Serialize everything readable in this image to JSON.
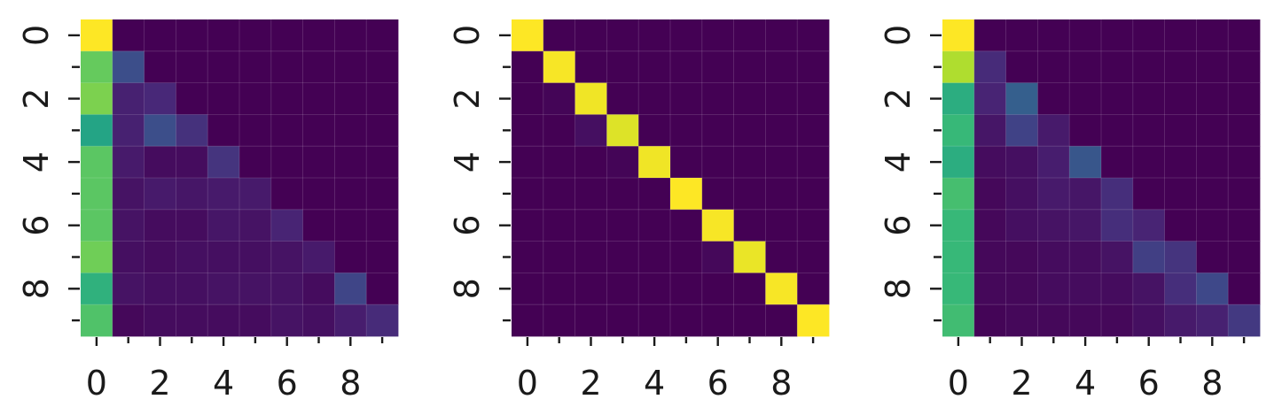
{
  "colormap": {
    "name": "viridis",
    "stops": [
      "#440154",
      "#482878",
      "#3e4989",
      "#31688e",
      "#26828e",
      "#1f9e89",
      "#35b779",
      "#6ece58",
      "#b5de2b",
      "#fde725"
    ]
  },
  "chart_data": [
    {
      "type": "heatmap",
      "title": "",
      "xlabel": "",
      "ylabel": "",
      "x_ticks": [
        0,
        2,
        4,
        6,
        8
      ],
      "y_ticks": [
        0,
        2,
        4,
        6,
        8
      ],
      "grid": false,
      "value_range": [
        0,
        1
      ],
      "values": [
        [
          1.0,
          0.0,
          0.0,
          0.0,
          0.0,
          0.0,
          0.0,
          0.0,
          0.0,
          0.0
        ],
        [
          0.76,
          0.24,
          0.0,
          0.0,
          0.0,
          0.0,
          0.0,
          0.0,
          0.0,
          0.0
        ],
        [
          0.8,
          0.09,
          0.11,
          0.0,
          0.0,
          0.0,
          0.0,
          0.0,
          0.0,
          0.0
        ],
        [
          0.58,
          0.09,
          0.24,
          0.14,
          0.0,
          0.0,
          0.0,
          0.0,
          0.0,
          0.0
        ],
        [
          0.74,
          0.07,
          0.03,
          0.03,
          0.15,
          0.0,
          0.0,
          0.0,
          0.0,
          0.0
        ],
        [
          0.74,
          0.05,
          0.07,
          0.06,
          0.07,
          0.07,
          0.0,
          0.0,
          0.0,
          0.0
        ],
        [
          0.74,
          0.05,
          0.03,
          0.03,
          0.06,
          0.05,
          0.1,
          0.0,
          0.0,
          0.0
        ],
        [
          0.78,
          0.04,
          0.03,
          0.04,
          0.04,
          0.04,
          0.05,
          0.07,
          0.0,
          0.0
        ],
        [
          0.64,
          0.05,
          0.04,
          0.04,
          0.05,
          0.05,
          0.05,
          0.03,
          0.21,
          0.0
        ],
        [
          0.72,
          0.02,
          0.03,
          0.03,
          0.03,
          0.03,
          0.05,
          0.04,
          0.08,
          0.12
        ]
      ]
    },
    {
      "type": "heatmap",
      "title": "",
      "xlabel": "",
      "ylabel": "",
      "x_ticks": [
        0,
        2,
        4,
        6,
        8
      ],
      "y_ticks": [
        0,
        2,
        4,
        6,
        8
      ],
      "grid": false,
      "value_range": [
        0,
        1
      ],
      "values": [
        [
          1.0,
          0.0,
          0.0,
          0.0,
          0.0,
          0.0,
          0.0,
          0.0,
          0.0,
          0.0
        ],
        [
          0.0,
          0.99,
          0.0,
          0.0,
          0.0,
          0.0,
          0.0,
          0.0,
          0.0,
          0.0
        ],
        [
          0.0,
          0.01,
          0.98,
          0.0,
          0.0,
          0.0,
          0.0,
          0.0,
          0.0,
          0.0
        ],
        [
          0.0,
          0.0,
          0.04,
          0.95,
          0.0,
          0.0,
          0.0,
          0.0,
          0.0,
          0.0
        ],
        [
          0.0,
          0.0,
          0.0,
          0.01,
          0.98,
          0.0,
          0.0,
          0.0,
          0.0,
          0.0
        ],
        [
          0.0,
          0.0,
          0.0,
          0.0,
          0.0,
          1.0,
          0.0,
          0.0,
          0.0,
          0.0
        ],
        [
          0.0,
          0.0,
          0.0,
          0.0,
          0.0,
          0.0,
          0.99,
          0.0,
          0.0,
          0.0
        ],
        [
          0.0,
          0.0,
          0.0,
          0.0,
          0.0,
          0.0,
          0.02,
          0.97,
          0.0,
          0.0
        ],
        [
          0.0,
          0.0,
          0.0,
          0.0,
          0.0,
          0.0,
          0.0,
          0.0,
          0.99,
          0.0
        ],
        [
          0.0,
          0.0,
          0.0,
          0.0,
          0.0,
          0.0,
          0.0,
          0.0,
          0.0,
          1.0
        ]
      ]
    },
    {
      "type": "heatmap",
      "title": "",
      "xlabel": "",
      "ylabel": "",
      "x_ticks": [
        0,
        2,
        4,
        6,
        8
      ],
      "y_ticks": [
        0,
        2,
        4,
        6,
        8
      ],
      "grid": false,
      "value_range": [
        0,
        1
      ],
      "values": [
        [
          1.0,
          0.0,
          0.0,
          0.0,
          0.0,
          0.0,
          0.0,
          0.0,
          0.0,
          0.0
        ],
        [
          0.88,
          0.12,
          0.0,
          0.0,
          0.0,
          0.0,
          0.0,
          0.0,
          0.0,
          0.0
        ],
        [
          0.62,
          0.1,
          0.3,
          0.0,
          0.0,
          0.0,
          0.0,
          0.0,
          0.0,
          0.0
        ],
        [
          0.67,
          0.06,
          0.2,
          0.07,
          0.0,
          0.0,
          0.0,
          0.0,
          0.0,
          0.0
        ],
        [
          0.62,
          0.03,
          0.04,
          0.08,
          0.27,
          0.0,
          0.0,
          0.0,
          0.0,
          0.0
        ],
        [
          0.7,
          0.02,
          0.04,
          0.07,
          0.06,
          0.13,
          0.0,
          0.0,
          0.0,
          0.0
        ],
        [
          0.67,
          0.02,
          0.04,
          0.05,
          0.06,
          0.13,
          0.1,
          0.0,
          0.0,
          0.0
        ],
        [
          0.67,
          0.02,
          0.02,
          0.03,
          0.03,
          0.05,
          0.19,
          0.15,
          0.0,
          0.0
        ],
        [
          0.67,
          0.02,
          0.02,
          0.03,
          0.03,
          0.03,
          0.05,
          0.13,
          0.22,
          0.0
        ],
        [
          0.69,
          0.01,
          0.02,
          0.02,
          0.02,
          0.02,
          0.04,
          0.07,
          0.09,
          0.17
        ]
      ]
    }
  ]
}
